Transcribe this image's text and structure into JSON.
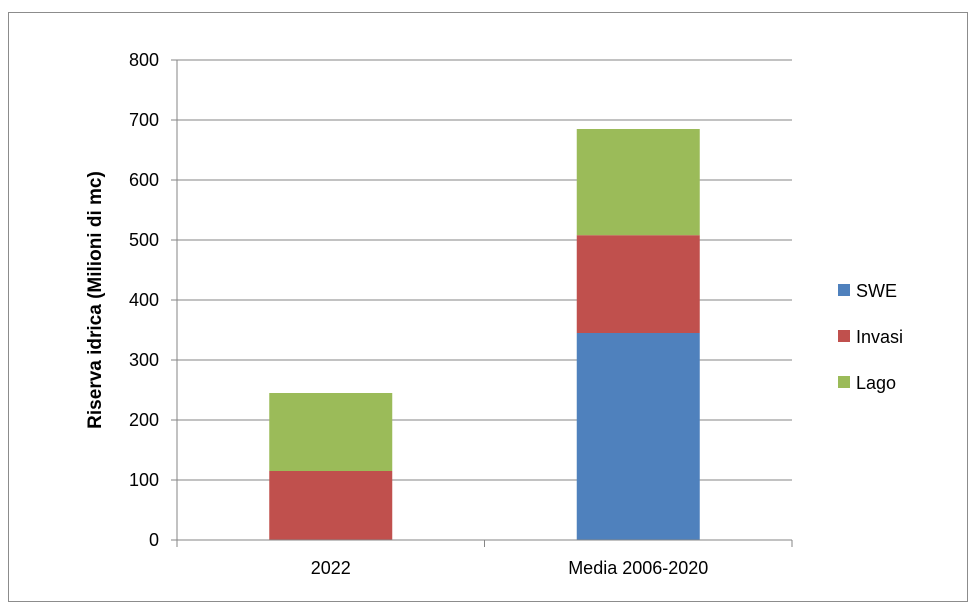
{
  "chart_data": {
    "type": "bar",
    "stacked": true,
    "title": "",
    "xlabel": "",
    "ylabel": "Riserva idrica (Milioni di mc)",
    "ylim": [
      0,
      800
    ],
    "yticks": [
      0,
      100,
      200,
      300,
      400,
      500,
      600,
      700,
      800
    ],
    "grid": true,
    "legend_position": "right",
    "categories": [
      "2022",
      "Media 2006-2020"
    ],
    "series": [
      {
        "name": "SWE",
        "color": "#4f81bd",
        "values": [
          0,
          345
        ]
      },
      {
        "name": "Invasi",
        "color": "#c0504d",
        "values": [
          115,
          163
        ]
      },
      {
        "name": "Lago",
        "color": "#9bbb59",
        "values": [
          130,
          177
        ]
      }
    ]
  }
}
